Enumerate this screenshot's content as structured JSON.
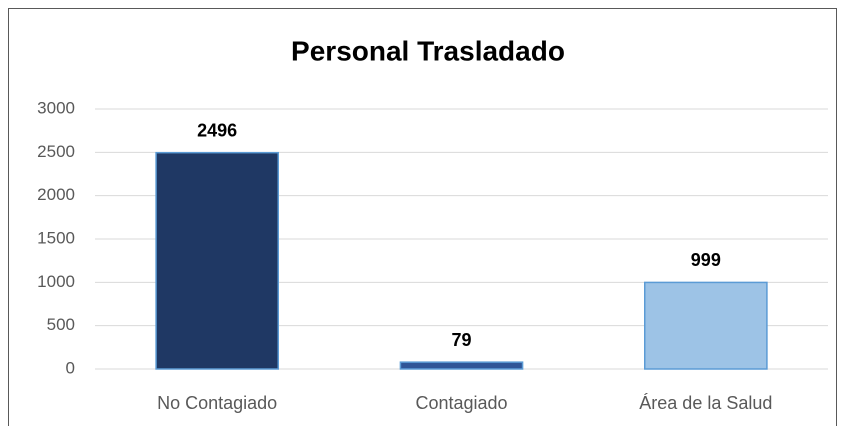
{
  "chart_data": {
    "type": "bar",
    "title": "Personal Trasladado",
    "categories": [
      "No Contagiado",
      "Contagiado",
      "Área de la Salud"
    ],
    "values": [
      2496,
      79,
      999
    ],
    "colors": [
      "#1f3864",
      "#2f5597",
      "#9dc3e6"
    ],
    "ylim": [
      0,
      3000
    ],
    "yticks": [
      0,
      500,
      1000,
      1500,
      2000,
      2500,
      3000
    ],
    "grid": true
  }
}
